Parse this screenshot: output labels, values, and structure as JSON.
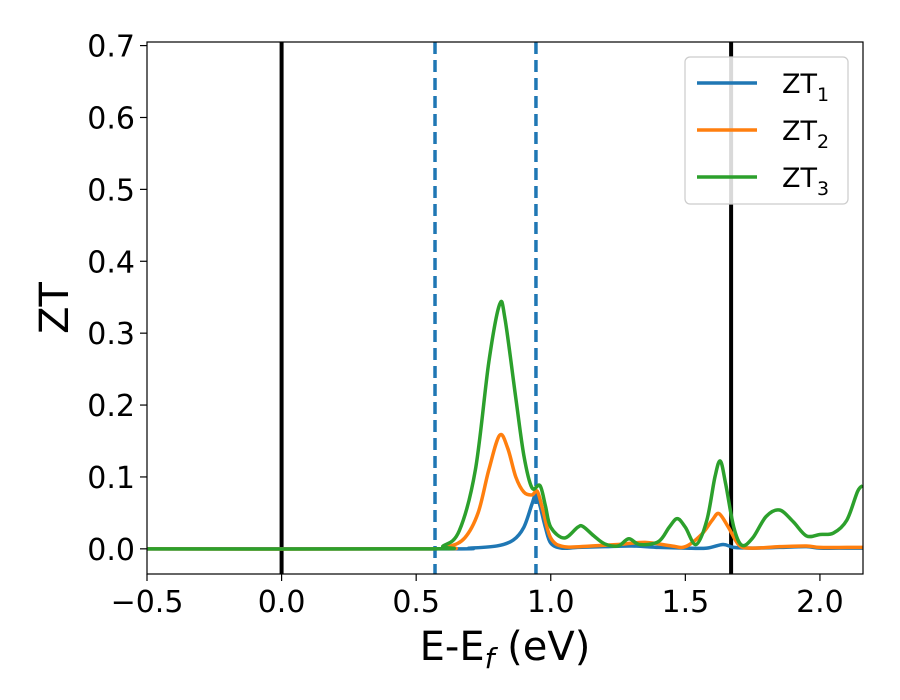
{
  "chart_data": {
    "type": "line",
    "xlabel": "E-E",
    "xlabel_sub": "f",
    "xlabel_unit": " (eV)",
    "ylabel": "ZT",
    "xlim": [
      -0.5,
      2.16
    ],
    "ylim": [
      -0.035,
      0.705
    ],
    "xticks": [
      -0.5,
      0.0,
      0.5,
      1.0,
      1.5,
      2.0
    ],
    "xtick_labels": [
      "−0.5",
      "0.0",
      "0.5",
      "1.0",
      "1.5",
      "2.0"
    ],
    "yticks": [
      0.0,
      0.1,
      0.2,
      0.3,
      0.4,
      0.5,
      0.6,
      0.7
    ],
    "ytick_labels": [
      "0.0",
      "0.1",
      "0.2",
      "0.3",
      "0.4",
      "0.5",
      "0.6",
      "0.7"
    ],
    "grid": false,
    "legend_position": "top-right",
    "vlines": [
      {
        "x": 0.0,
        "color": "#000000",
        "style": "solid"
      },
      {
        "x": 1.67,
        "color": "#000000",
        "style": "solid"
      },
      {
        "x": 0.57,
        "color": "#1f77b4",
        "style": "dashed"
      },
      {
        "x": 0.945,
        "color": "#1f77b4",
        "style": "dashed"
      }
    ],
    "series": [
      {
        "name": "ZT",
        "sub": "1",
        "color": "#1f77b4",
        "points": [
          [
            -0.5,
            0
          ],
          [
            0.6,
            0
          ],
          [
            0.7,
            0.001
          ],
          [
            0.8,
            0.004
          ],
          [
            0.86,
            0.012
          ],
          [
            0.9,
            0.03
          ],
          [
            0.93,
            0.062
          ],
          [
            0.945,
            0.076
          ],
          [
            0.96,
            0.06
          ],
          [
            0.98,
            0.03
          ],
          [
            1.0,
            0.008
          ],
          [
            1.04,
            0.001
          ],
          [
            1.1,
            0.002
          ],
          [
            1.2,
            0.003
          ],
          [
            1.3,
            0.004
          ],
          [
            1.4,
            0.002
          ],
          [
            1.5,
            0.001
          ],
          [
            1.58,
            0.001
          ],
          [
            1.64,
            0.006
          ],
          [
            1.68,
            0.002
          ],
          [
            1.75,
            0.001
          ],
          [
            1.85,
            0.002
          ],
          [
            1.95,
            0.003
          ],
          [
            2.0,
            0.001
          ],
          [
            2.1,
            0.001
          ],
          [
            2.16,
            0.001
          ]
        ]
      },
      {
        "name": "ZT",
        "sub": "2",
        "color": "#ff7f0e",
        "points": [
          [
            -0.5,
            0
          ],
          [
            0.55,
            0
          ],
          [
            0.62,
            0.003
          ],
          [
            0.68,
            0.015
          ],
          [
            0.73,
            0.05
          ],
          [
            0.77,
            0.11
          ],
          [
            0.81,
            0.158
          ],
          [
            0.84,
            0.14
          ],
          [
            0.87,
            0.1
          ],
          [
            0.9,
            0.079
          ],
          [
            0.93,
            0.075
          ],
          [
            0.95,
            0.08
          ],
          [
            0.97,
            0.055
          ],
          [
            1.0,
            0.015
          ],
          [
            1.05,
            0.003
          ],
          [
            1.15,
            0.004
          ],
          [
            1.25,
            0.006
          ],
          [
            1.35,
            0.009
          ],
          [
            1.45,
            0.004
          ],
          [
            1.5,
            0.003
          ],
          [
            1.56,
            0.02
          ],
          [
            1.6,
            0.04
          ],
          [
            1.625,
            0.049
          ],
          [
            1.66,
            0.03
          ],
          [
            1.7,
            0.005
          ],
          [
            1.75,
            0.001
          ],
          [
            1.85,
            0.003
          ],
          [
            1.95,
            0.004
          ],
          [
            2.0,
            0.002
          ],
          [
            2.1,
            0.002
          ],
          [
            2.16,
            0.002
          ]
        ]
      },
      {
        "name": "ZT",
        "sub": "3",
        "color": "#2ca02c",
        "points": [
          [
            -0.5,
            0
          ],
          [
            0.55,
            0
          ],
          [
            0.6,
            0.004
          ],
          [
            0.66,
            0.025
          ],
          [
            0.72,
            0.11
          ],
          [
            0.77,
            0.26
          ],
          [
            0.81,
            0.34
          ],
          [
            0.83,
            0.32
          ],
          [
            0.87,
            0.21
          ],
          [
            0.9,
            0.13
          ],
          [
            0.93,
            0.085
          ],
          [
            0.96,
            0.088
          ],
          [
            0.98,
            0.06
          ],
          [
            1.0,
            0.03
          ],
          [
            1.05,
            0.015
          ],
          [
            1.1,
            0.03
          ],
          [
            1.12,
            0.031
          ],
          [
            1.16,
            0.018
          ],
          [
            1.2,
            0.007
          ],
          [
            1.25,
            0.004
          ],
          [
            1.29,
            0.014
          ],
          [
            1.33,
            0.006
          ],
          [
            1.4,
            0.01
          ],
          [
            1.44,
            0.03
          ],
          [
            1.47,
            0.042
          ],
          [
            1.5,
            0.03
          ],
          [
            1.54,
            0.006
          ],
          [
            1.58,
            0.04
          ],
          [
            1.61,
            0.1
          ],
          [
            1.63,
            0.122
          ],
          [
            1.65,
            0.09
          ],
          [
            1.68,
            0.03
          ],
          [
            1.71,
            0.005
          ],
          [
            1.75,
            0.015
          ],
          [
            1.8,
            0.045
          ],
          [
            1.85,
            0.054
          ],
          [
            1.9,
            0.038
          ],
          [
            1.95,
            0.018
          ],
          [
            2.0,
            0.02
          ],
          [
            2.05,
            0.022
          ],
          [
            2.1,
            0.04
          ],
          [
            2.14,
            0.08
          ],
          [
            2.16,
            0.088
          ]
        ]
      }
    ]
  }
}
